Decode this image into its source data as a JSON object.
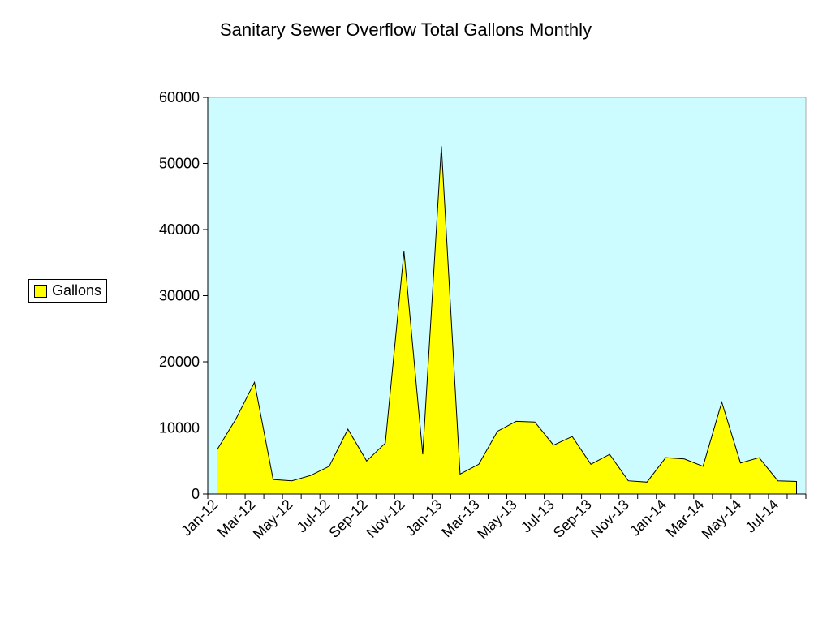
{
  "chart_data": {
    "type": "area",
    "title": "Sanitary Sewer Overflow Total Gallons Monthly",
    "xlabel": "",
    "ylabel": "",
    "ylim": [
      0,
      60000
    ],
    "yticks": [
      "0",
      "10000",
      "20000",
      "30000",
      "40000",
      "50000",
      "60000"
    ],
    "tick_labels": [
      "Jan-12",
      "Mar-12",
      "May-12",
      "Jul-12",
      "Sep-12",
      "Nov-12",
      "Jan-13",
      "Mar-13",
      "May-13",
      "Jul-13",
      "Sep-13",
      "Nov-13",
      "Jan-14",
      "Mar-14",
      "May-14",
      "Jul-14"
    ],
    "categories": [
      "Jan-12",
      "Feb-12",
      "Mar-12",
      "Apr-12",
      "May-12",
      "Jun-12",
      "Jul-12",
      "Aug-12",
      "Sep-12",
      "Oct-12",
      "Nov-12",
      "Dec-12",
      "Jan-13",
      "Feb-13",
      "Mar-13",
      "Apr-13",
      "May-13",
      "Jun-13",
      "Jul-13",
      "Aug-13",
      "Sep-13",
      "Oct-13",
      "Nov-13",
      "Dec-13",
      "Jan-14",
      "Feb-14",
      "Mar-14",
      "Apr-14",
      "May-14",
      "Jun-14",
      "Jul-14",
      "Aug-14"
    ],
    "series": [
      {
        "name": "Gallons",
        "values": [
          6700,
          11300,
          16900,
          2200,
          2000,
          2800,
          4200,
          9800,
          5000,
          7700,
          36700,
          6000,
          52600,
          3000,
          4500,
          9500,
          11000,
          10900,
          7400,
          8700,
          4500,
          6000,
          2000,
          1800,
          5500,
          5300,
          4200,
          13900,
          4700,
          5500,
          2000,
          1900
        ]
      }
    ],
    "legend": "left",
    "grid": false,
    "colors": {
      "fill": "#ffff00",
      "stroke": "#000000",
      "plot_bg": "#ccfcff",
      "plot_border": "#aaaaaa"
    }
  }
}
